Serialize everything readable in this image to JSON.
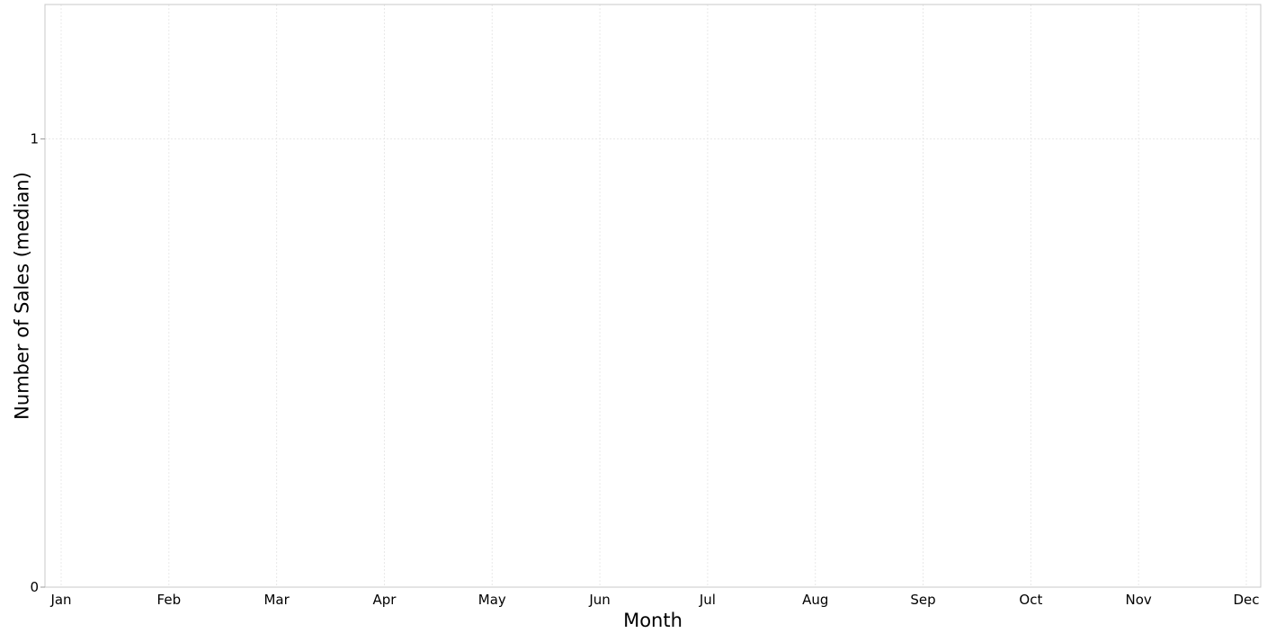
{
  "chart_data": {
    "type": "line",
    "title": "",
    "xlabel": "Month",
    "ylabel": "Number of Sales (median)",
    "categories": [
      "Jan",
      "Feb",
      "Mar",
      "Apr",
      "May",
      "Jun",
      "Jul",
      "Aug",
      "Sep",
      "Oct",
      "Nov",
      "Dec"
    ],
    "series": [],
    "ylim": [
      0,
      1.3
    ],
    "yticks": [
      {
        "value": 0,
        "label": "0"
      },
      {
        "value": 1,
        "label": "1"
      }
    ],
    "grid": true,
    "legend": "none"
  }
}
